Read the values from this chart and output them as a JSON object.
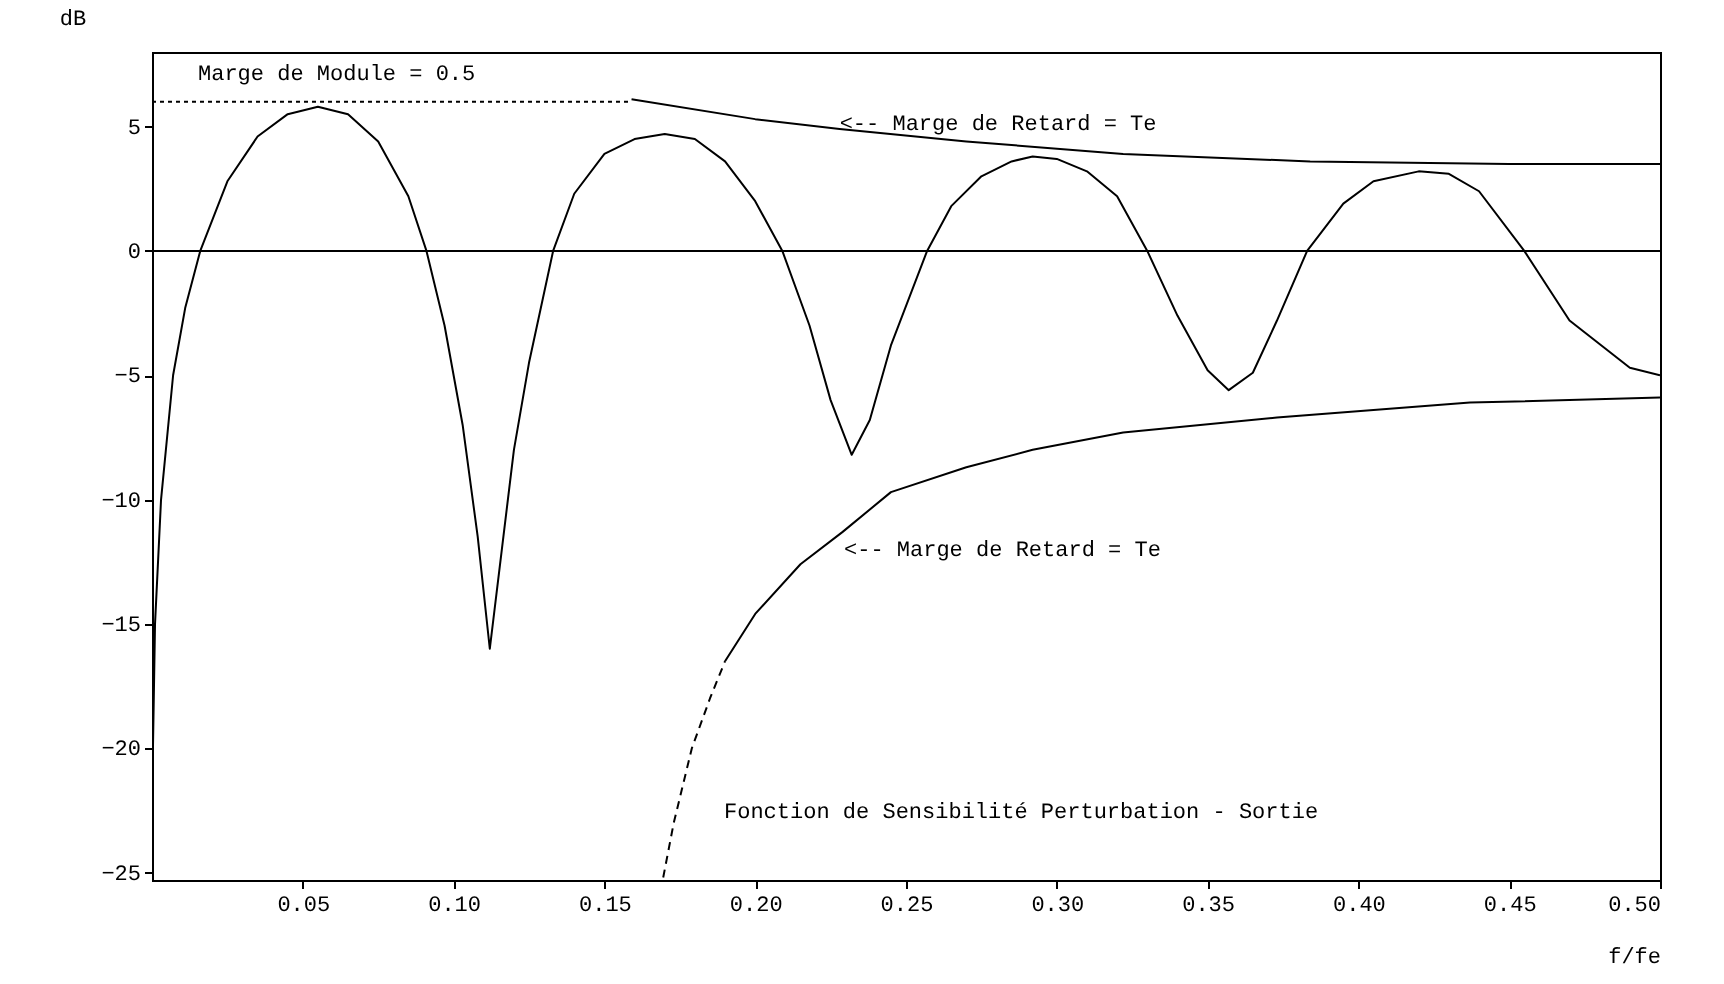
{
  "chart_data": {
    "type": "line",
    "xlabel": "f/fe",
    "ylabel": "dB",
    "xlim": [
      0,
      0.5
    ],
    "ylim": [
      -25.3,
      8
    ],
    "xticks": [
      {
        "value": 0.05,
        "label": "0.05"
      },
      {
        "value": 0.1,
        "label": "0.10"
      },
      {
        "value": 0.15,
        "label": "0.15"
      },
      {
        "value": 0.2,
        "label": "0.20"
      },
      {
        "value": 0.25,
        "label": "0.25"
      },
      {
        "value": 0.3,
        "label": "0.30"
      },
      {
        "value": 0.35,
        "label": "0.35"
      },
      {
        "value": 0.4,
        "label": "0.40"
      },
      {
        "value": 0.45,
        "label": "0.45"
      },
      {
        "value": 0.5,
        "label": "0.50"
      }
    ],
    "yticks": [
      5,
      0,
      -5,
      -10,
      -15,
      -20,
      -25
    ],
    "ref_lines": [
      {
        "axis": "y",
        "value": 0,
        "color": "#000000",
        "line_style": "solid"
      }
    ],
    "series": [
      {
        "color": "#000000",
        "line_style": "solid",
        "x": [
          0,
          0.001,
          0.003,
          0.007,
          0.011,
          0.016,
          0.025,
          0.035,
          0.045,
          0.055,
          0.065,
          0.075,
          0.085,
          0.091,
          0.097,
          0.103,
          0.108,
          0.112,
          0.116,
          0.12,
          0.125,
          0.133,
          0.14,
          0.15,
          0.16,
          0.17,
          0.18,
          0.19,
          0.2,
          0.209,
          0.218,
          0.225,
          0.232,
          0.238,
          0.245,
          0.257,
          0.265,
          0.275,
          0.285,
          0.292,
          0.3,
          0.31,
          0.32,
          0.33,
          0.34,
          0.35,
          0.357,
          0.365,
          0.373,
          0.383,
          0.395,
          0.405,
          0.42,
          0.43,
          0.44,
          0.455,
          0.47,
          0.49,
          0.5
        ],
        "values": [
          -22.3,
          -15,
          -10,
          -5,
          -2.3,
          0,
          2.8,
          4.6,
          5.5,
          5.8,
          5.5,
          4.4,
          2.2,
          0,
          -3,
          -7,
          -11.5,
          -16,
          -12,
          -8,
          -4.5,
          0,
          2.3,
          3.9,
          4.5,
          4.7,
          4.5,
          3.6,
          2,
          0,
          -3,
          -6,
          -8.2,
          -6.8,
          -3.8,
          0,
          1.8,
          3.0,
          3.6,
          3.8,
          3.7,
          3.2,
          2.2,
          0,
          -2.6,
          -4.8,
          -5.6,
          -4.9,
          -2.8,
          0,
          1.9,
          2.8,
          3.2,
          3.1,
          2.4,
          0,
          -2.8,
          -4.7,
          -5.0
        ]
      },
      {
        "color": "#000000",
        "line_style": "dotted",
        "x": [
          0,
          0.159
        ],
        "values": [
          6,
          6
        ]
      },
      {
        "color": "#000000",
        "line_style": "solid",
        "x": [
          0.159,
          0.2,
          0.228,
          0.27,
          0.322,
          0.384,
          0.45,
          0.5
        ],
        "values": [
          6.1,
          5.3,
          4.9,
          4.4,
          3.9,
          3.6,
          3.5,
          3.5
        ]
      },
      {
        "color": "#000000",
        "line_style": "dashed",
        "x": [
          0.1695,
          0.173,
          0.179,
          0.185,
          0.19
        ],
        "values": [
          -25.2,
          -23,
          -20,
          -18,
          -16.5
        ]
      },
      {
        "color": "#000000",
        "line_style": "solid",
        "x": [
          0.19,
          0.2,
          0.215,
          0.229,
          0.245,
          0.27,
          0.292,
          0.322,
          0.373,
          0.437,
          0.5
        ],
        "values": [
          -16.5,
          -14.6,
          -12.6,
          -11.3,
          -9.7,
          -8.7,
          -8.0,
          -7.3,
          -6.7,
          -6.1,
          -5.9
        ]
      }
    ],
    "annotations": [
      "Marge de Module = 0.5",
      {
        "text": "<-- Marge de Retard = Te",
        "x": 0.228,
        "y": 5.1
      },
      "<-- Marge de Retard = Te",
      "Fonction de Sensibilité Perturbation - Sortie"
    ]
  }
}
